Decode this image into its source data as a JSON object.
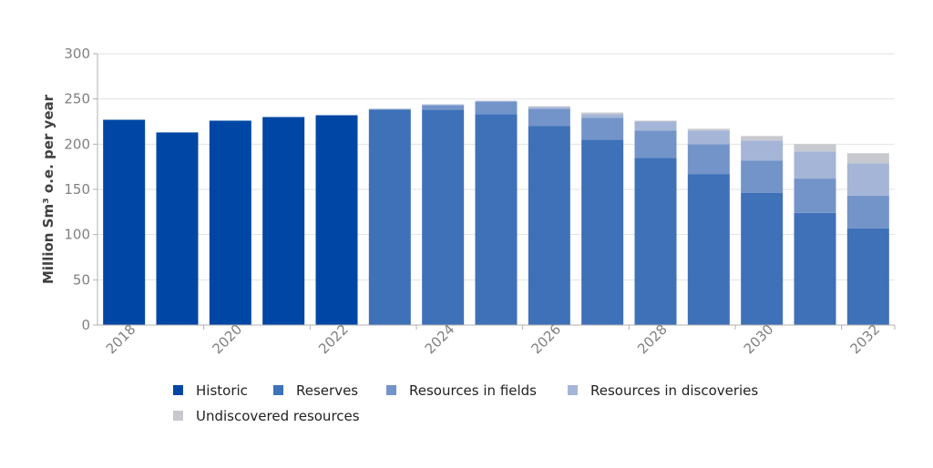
{
  "chart_data": {
    "type": "bar",
    "stacked": true,
    "ylabel": "Million Sm³ o.e. per year",
    "xlabel": "",
    "ylim": [
      0,
      300
    ],
    "yticks": [
      0,
      50,
      100,
      150,
      200,
      250,
      300
    ],
    "grid": true,
    "legend_position": "bottom",
    "categories": [
      "2018",
      "2019",
      "2020",
      "2021",
      "2022",
      "2023",
      "2024",
      "2025",
      "2026",
      "2027",
      "2028",
      "2029",
      "2030",
      "2031",
      "2032"
    ],
    "xtick_labels": [
      "2018",
      "2020",
      "2022",
      "2024",
      "2026",
      "2028",
      "2030",
      "2032"
    ],
    "series": [
      {
        "name": "Historic",
        "color": "#0047a5",
        "values": [
          227,
          213,
          226,
          230,
          232,
          0,
          0,
          0,
          0,
          0,
          0,
          0,
          0,
          0,
          0
        ]
      },
      {
        "name": "Reserves",
        "color": "#3e71b8",
        "values": [
          0,
          0,
          0,
          0,
          0,
          238,
          238,
          233,
          220,
          205,
          185,
          167,
          146,
          124,
          107
        ]
      },
      {
        "name": "Resources in fields",
        "color": "#7394c9",
        "values": [
          0,
          0,
          0,
          0,
          0,
          1,
          5,
          14,
          19,
          24,
          30,
          33,
          36,
          38,
          36
        ]
      },
      {
        "name": "Resources in discoveries",
        "color": "#a4b5d8",
        "values": [
          0,
          0,
          0,
          0,
          0,
          0,
          1,
          1,
          2,
          4,
          10,
          15,
          22,
          30,
          36
        ]
      },
      {
        "name": "Undiscovered resources",
        "color": "#c8c9cf",
        "values": [
          0,
          0,
          0,
          0,
          0,
          0,
          0,
          0,
          1,
          2,
          1,
          2,
          5,
          8,
          11
        ]
      }
    ]
  }
}
